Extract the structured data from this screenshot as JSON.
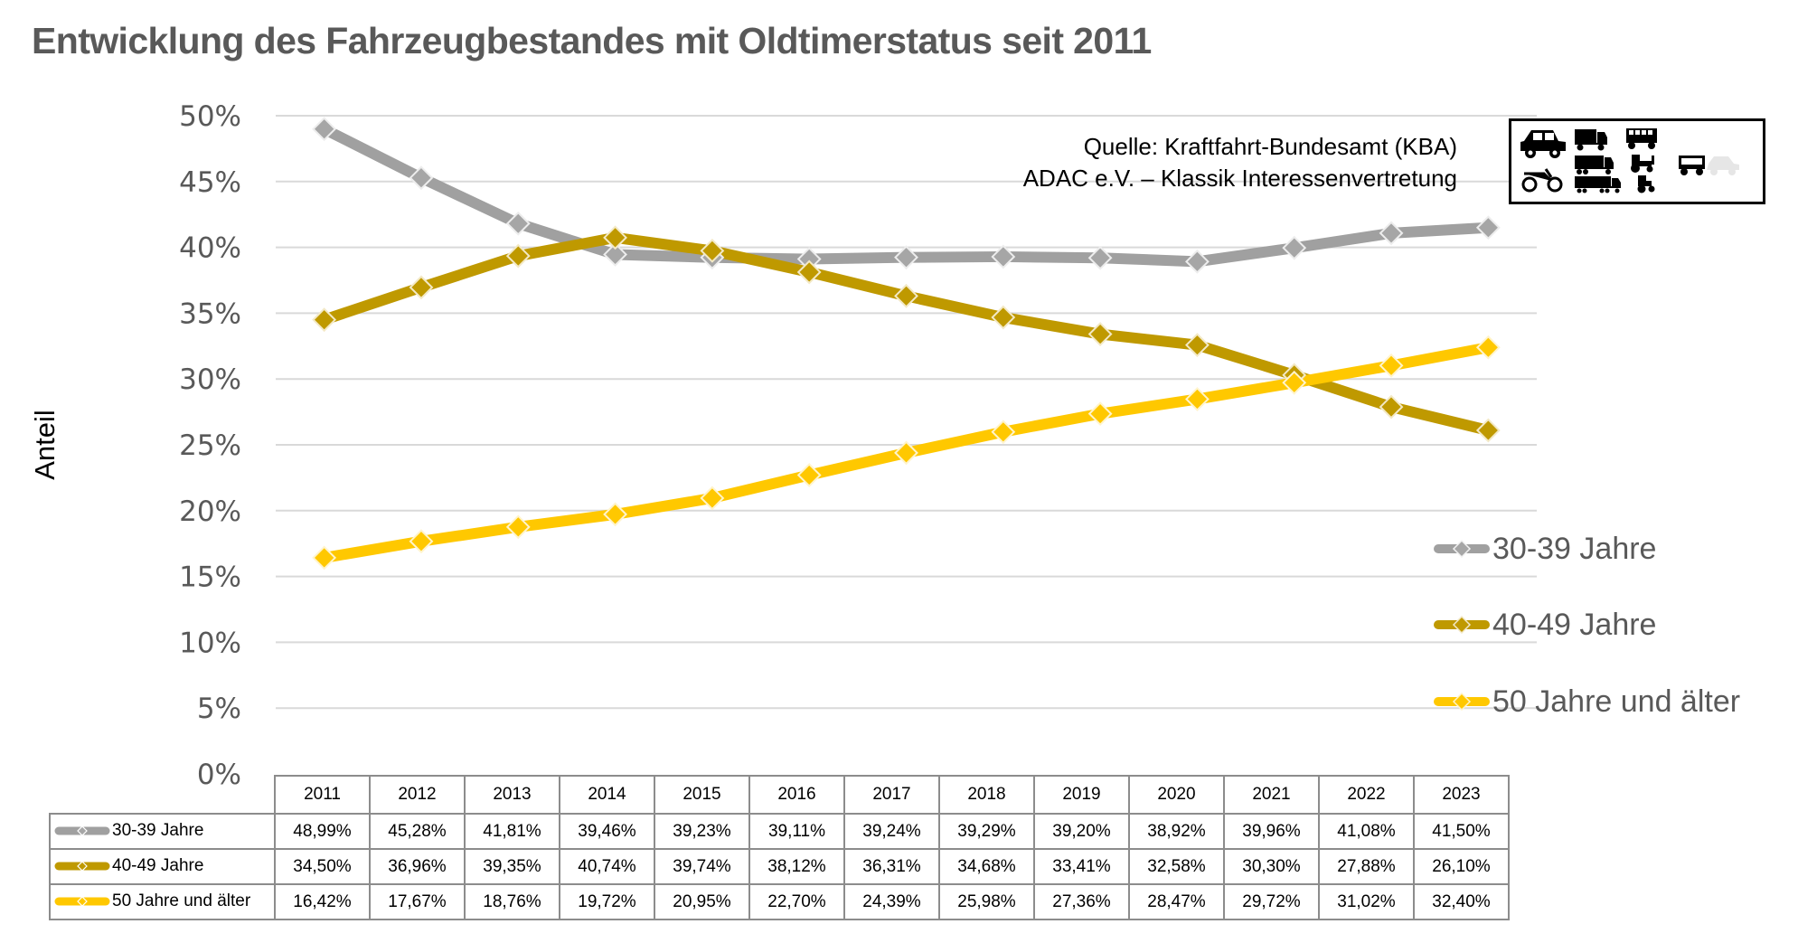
{
  "page": {
    "title": "Entwicklung des Fahrzeugbestandes mit Oldtimerstatus seit 2011",
    "source_line1": "Quelle: Kraftfahrt-Bundesamt (KBA)",
    "source_line2": "ADAC e.V. – Klassik Interessenvertretung",
    "vehicle_icons": [
      "car-icon",
      "truck-icon",
      "bus-icon",
      "lorry-icon",
      "tractor-icon",
      "trailer-icon",
      "faded-car-icon",
      "motorcycle-icon",
      "semi-truck-icon",
      "small-tractor-icon"
    ]
  },
  "chart_data": {
    "type": "line",
    "title": "Entwicklung des Fahrzeugbestandes mit Oldtimerstatus seit 2011",
    "xlabel": "",
    "ylabel": "Anteil",
    "ylim": [
      0,
      50
    ],
    "yticks": [
      0,
      5,
      10,
      15,
      20,
      25,
      30,
      35,
      40,
      45,
      50
    ],
    "ytick_labels": [
      "0%",
      "5%",
      "10%",
      "15%",
      "20%",
      "25%",
      "30%",
      "35%",
      "40%",
      "45%",
      "50%"
    ],
    "grid": true,
    "legend_position": "right",
    "categories": [
      "2011",
      "2012",
      "2013",
      "2014",
      "2015",
      "2016",
      "2017",
      "2018",
      "2019",
      "2020",
      "2021",
      "2022",
      "2023"
    ],
    "series": [
      {
        "name": "30-39 Jahre",
        "color": "#A0A0A0",
        "marker_color": "#A6A6A6",
        "values": [
          48.99,
          45.28,
          41.81,
          39.46,
          39.23,
          39.11,
          39.24,
          39.29,
          39.2,
          38.92,
          39.96,
          41.08,
          41.5
        ],
        "labels": [
          "48,99%",
          "45,28%",
          "41,81%",
          "39,46%",
          "39,23%",
          "39,11%",
          "39,24%",
          "39,29%",
          "39,20%",
          "38,92%",
          "39,96%",
          "41,08%",
          "41,50%"
        ]
      },
      {
        "name": "40-49 Jahre",
        "color": "#BF9900",
        "marker_color": "#BF9900",
        "values": [
          34.5,
          36.96,
          39.35,
          40.74,
          39.74,
          38.12,
          36.31,
          34.68,
          33.41,
          32.58,
          30.3,
          27.88,
          26.1
        ],
        "labels": [
          "34,50%",
          "36,96%",
          "39,35%",
          "40,74%",
          "39,74%",
          "38,12%",
          "36,31%",
          "34,68%",
          "33,41%",
          "32,58%",
          "30,30%",
          "27,88%",
          "26,10%"
        ]
      },
      {
        "name": "50 Jahre und älter",
        "color": "#FFC800",
        "marker_color": "#FFC800",
        "values": [
          16.42,
          17.67,
          18.76,
          19.72,
          20.95,
          22.7,
          24.39,
          25.98,
          27.36,
          28.47,
          29.72,
          31.02,
          32.4
        ],
        "labels": [
          "16,42%",
          "17,67%",
          "18,76%",
          "19,72%",
          "20,95%",
          "22,70%",
          "24,39%",
          "25,98%",
          "27,36%",
          "28,47%",
          "29,72%",
          "31,02%",
          "32,40%"
        ]
      }
    ],
    "data_table": true
  }
}
